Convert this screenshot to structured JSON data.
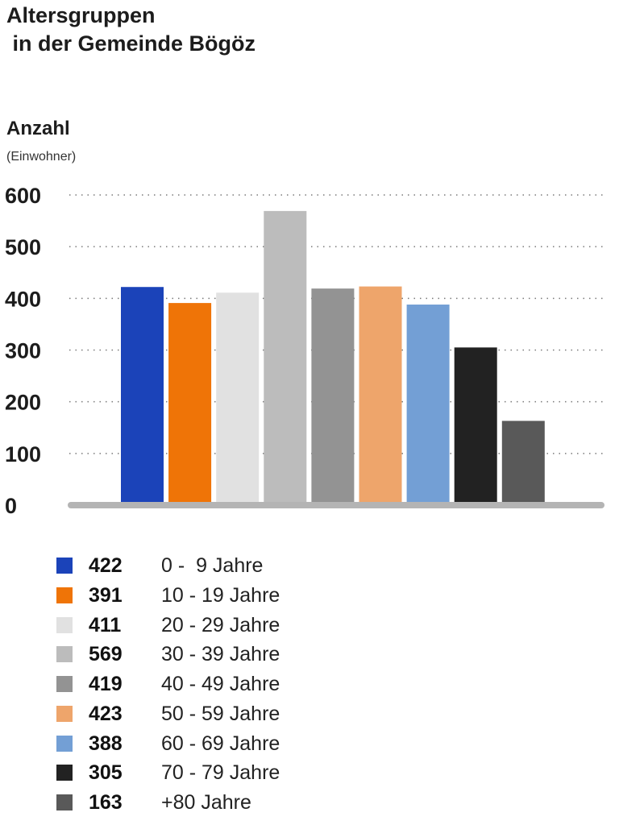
{
  "chart_data": {
    "type": "bar",
    "title": "Altersgruppen\n in der Gemeinde Bögöz",
    "ylabel": "Anzahl",
    "yunit": "(Einwohner)",
    "xlabel": "",
    "ylim": [
      0,
      600
    ],
    "yticks": [
      0,
      100,
      200,
      300,
      400,
      500,
      600
    ],
    "grid": true,
    "legend_position": "bottom",
    "categories": [
      "0 -  9 Jahre",
      "10 - 19 Jahre",
      "20 - 29 Jahre",
      "30 - 39 Jahre",
      "40 - 49 Jahre",
      "50 - 59 Jahre",
      "60 - 69 Jahre",
      "70 - 79 Jahre",
      "+80 Jahre"
    ],
    "values": [
      422,
      391,
      411,
      569,
      419,
      423,
      388,
      305,
      163
    ],
    "colors": [
      "#1b43b9",
      "#ef7407",
      "#e1e1e1",
      "#bcbcbc",
      "#939393",
      "#eea56b",
      "#739fd5",
      "#222222",
      "#595959"
    ]
  }
}
